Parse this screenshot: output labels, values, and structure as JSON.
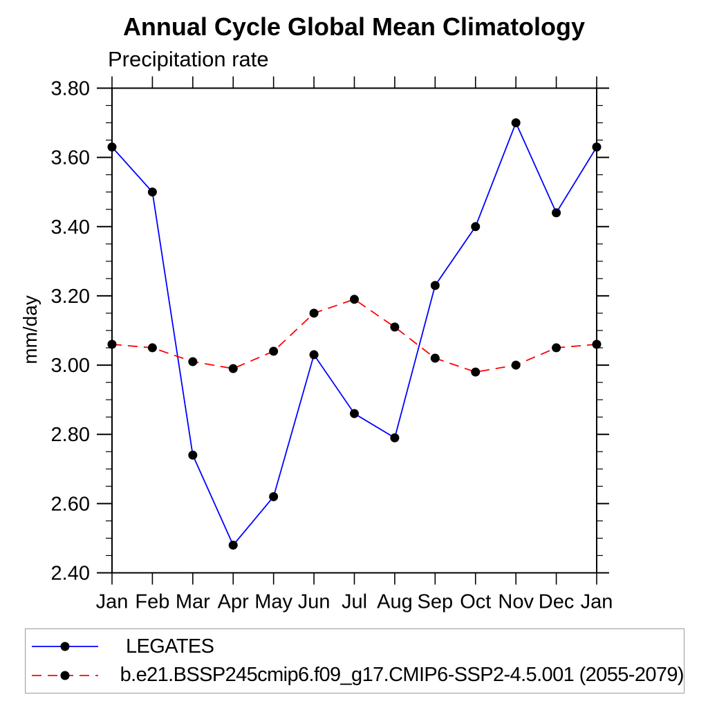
{
  "chart_data": {
    "type": "line",
    "title": "Annual Cycle Global Mean Climatology",
    "subtitle": "Precipitation rate",
    "ylabel": "mm/day",
    "xlabel": "",
    "categories": [
      "Jan",
      "Feb",
      "Mar",
      "Apr",
      "May",
      "Jun",
      "Jul",
      "Aug",
      "Sep",
      "Oct",
      "Nov",
      "Dec",
      "Jan"
    ],
    "ylim": [
      2.4,
      3.8
    ],
    "ytick_step": 0.2,
    "yminor_step": 0.05,
    "ytick_format_decimals": 2,
    "grid": false,
    "legend_position": "bottom-box",
    "axis_color": "#000000",
    "marker_radius": 6.5,
    "series": [
      {
        "name": "LEGATES",
        "color": "#0000ff",
        "line_style": "solid",
        "marker": "filled-circle",
        "marker_color": "#000000",
        "values": [
          3.63,
          3.5,
          2.74,
          2.48,
          2.62,
          3.03,
          2.86,
          2.79,
          3.23,
          3.4,
          3.7,
          3.44,
          3.63
        ]
      },
      {
        "name": "b.e21.BSSP245cmip6.f09_g17.CMIP6-SSP2-4.5.001 (2055-2079)",
        "color": "#ff0000",
        "line_style": "dashed",
        "marker": "filled-circle",
        "marker_color": "#000000",
        "values": [
          3.06,
          3.05,
          3.01,
          2.99,
          3.04,
          3.15,
          3.19,
          3.11,
          3.02,
          2.98,
          3.0,
          3.05,
          3.06
        ]
      }
    ]
  }
}
